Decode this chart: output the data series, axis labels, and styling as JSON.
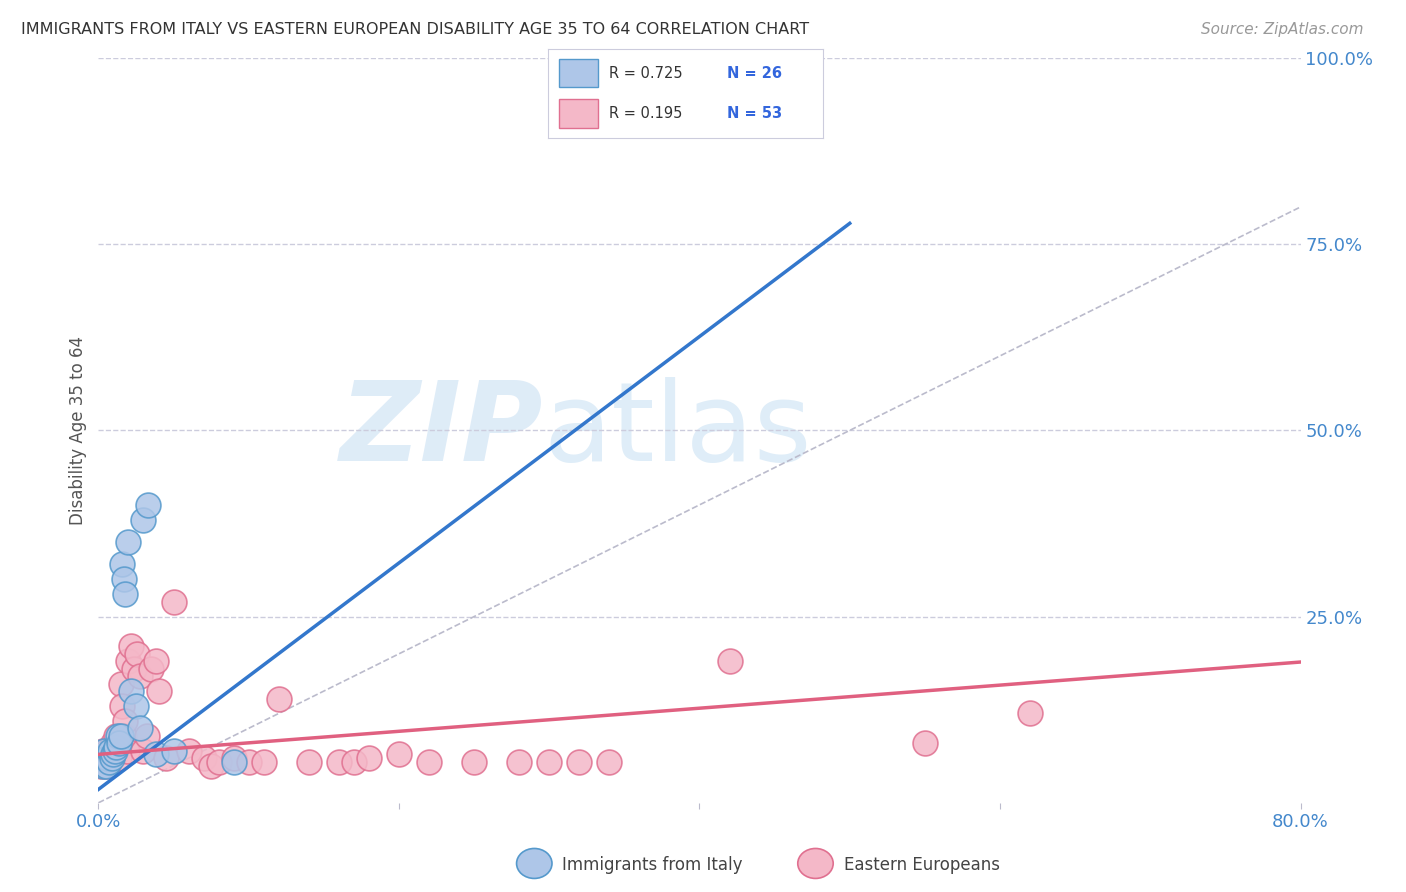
{
  "title": "IMMIGRANTS FROM ITALY VS EASTERN EUROPEAN DISABILITY AGE 35 TO 64 CORRELATION CHART",
  "source": "Source: ZipAtlas.com",
  "ylabel": "Disability Age 35 to 64",
  "xlim": [
    0.0,
    0.8
  ],
  "ylim": [
    0.0,
    1.0
  ],
  "watermark_zip": "ZIP",
  "watermark_atlas": "atlas",
  "legend_R1": "R = 0.725",
  "legend_N1": "N = 26",
  "legend_R2": "R = 0.195",
  "legend_N2": "N = 53",
  "italy_color": "#aec6e8",
  "italy_edge": "#5599cc",
  "eastern_color": "#f4b8c8",
  "eastern_edge": "#e07090",
  "italy_line_color": "#3377cc",
  "eastern_line_color": "#e06080",
  "ref_line_color": "#bbbbcc",
  "grid_color": "#ccccdd",
  "background_color": "#ffffff",
  "italy_line_x": [
    0.0,
    0.5
  ],
  "italy_line_slope": 1.52,
  "italy_line_intercept": 0.018,
  "eastern_line_x": [
    0.0,
    0.8
  ],
  "eastern_line_slope": 0.155,
  "eastern_line_intercept": 0.065,
  "italy_x": [
    0.002,
    0.003,
    0.004,
    0.005,
    0.006,
    0.007,
    0.008,
    0.009,
    0.01,
    0.011,
    0.012,
    0.013,
    0.014,
    0.015,
    0.016,
    0.017,
    0.018,
    0.02,
    0.022,
    0.025,
    0.028,
    0.03,
    0.033,
    0.038,
    0.05,
    0.09
  ],
  "italy_y": [
    0.06,
    0.05,
    0.07,
    0.05,
    0.06,
    0.055,
    0.07,
    0.06,
    0.065,
    0.07,
    0.075,
    0.09,
    0.08,
    0.09,
    0.32,
    0.3,
    0.28,
    0.35,
    0.15,
    0.13,
    0.1,
    0.38,
    0.4,
    0.065,
    0.07,
    0.055
  ],
  "eastern_x": [
    0.001,
    0.002,
    0.003,
    0.004,
    0.005,
    0.006,
    0.007,
    0.008,
    0.009,
    0.01,
    0.011,
    0.012,
    0.013,
    0.014,
    0.015,
    0.016,
    0.017,
    0.018,
    0.019,
    0.02,
    0.022,
    0.024,
    0.026,
    0.028,
    0.03,
    0.032,
    0.035,
    0.038,
    0.04,
    0.045,
    0.05,
    0.06,
    0.07,
    0.075,
    0.08,
    0.09,
    0.1,
    0.11,
    0.12,
    0.14,
    0.16,
    0.17,
    0.18,
    0.2,
    0.22,
    0.25,
    0.28,
    0.3,
    0.32,
    0.34,
    0.42,
    0.55,
    0.62
  ],
  "eastern_y": [
    0.06,
    0.05,
    0.07,
    0.06,
    0.05,
    0.07,
    0.055,
    0.06,
    0.07,
    0.08,
    0.065,
    0.09,
    0.07,
    0.06,
    0.16,
    0.13,
    0.09,
    0.11,
    0.07,
    0.19,
    0.21,
    0.18,
    0.2,
    0.17,
    0.07,
    0.09,
    0.18,
    0.19,
    0.15,
    0.06,
    0.27,
    0.07,
    0.06,
    0.05,
    0.055,
    0.06,
    0.055,
    0.055,
    0.14,
    0.055,
    0.055,
    0.055,
    0.06,
    0.065,
    0.055,
    0.055,
    0.055,
    0.055,
    0.055,
    0.055,
    0.19,
    0.08,
    0.12
  ]
}
